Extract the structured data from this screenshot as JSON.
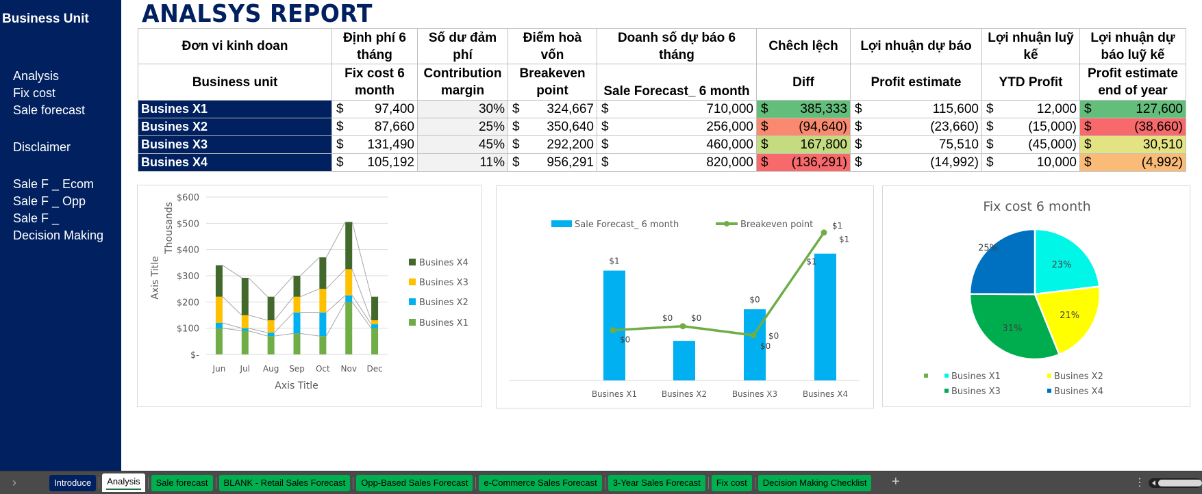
{
  "sidebar": {
    "title": "Business Unit",
    "links": [
      {
        "label": "Analysis"
      },
      {
        "label": "Fix cost"
      },
      {
        "label": "Sale forecast"
      },
      {
        "label": "Disclaimer"
      },
      {
        "label": "Sale F _ Ecom"
      },
      {
        "label": "Sale F _ Opp"
      },
      {
        "label": "Sale F _"
      },
      {
        "label": "Decision Making"
      }
    ]
  },
  "report": {
    "title": "ANALSYS REPORT",
    "headers_vn": [
      "Đơn vi kinh doan",
      "Định phí 6 tháng",
      "Số dư đảm phí",
      "Điểm hoà vốn",
      "Doanh số dự báo 6 tháng",
      "Chêch lệch",
      "Lợi nhuận dự báo",
      "Lợi nhuận luỹ kế",
      "Lợi nhuận dự báo luỹ kế"
    ],
    "headers_en": [
      "Business unit",
      "Fix cost 6 month",
      "Contribution margin",
      "Breakeven point",
      "Sale Forecast_ 6 month",
      "Diff",
      "Profit estimate",
      "YTD Profit",
      "Profit estimate end of year"
    ],
    "currency_symbol": "$",
    "rows": [
      {
        "unit": "Busines X1",
        "fix_cost": "97,400",
        "margin": "30%",
        "breakeven": "324,667",
        "sale_forecast": "710,000",
        "diff": "385,333",
        "profit_estimate": "115,600",
        "ytd_profit": "12,000",
        "profit_eoy": "127,600",
        "diff_color": "#63be7b",
        "eoy_color": "#63be7b"
      },
      {
        "unit": "Busines X2",
        "fix_cost": "87,660",
        "margin": "25%",
        "breakeven": "350,640",
        "sale_forecast": "256,000",
        "diff": "(94,640)",
        "profit_estimate": "(23,660)",
        "ytd_profit": "(15,000)",
        "profit_eoy": "(38,660)",
        "diff_color": "#fa8a6f",
        "eoy_color": "#f8696b"
      },
      {
        "unit": "Busines X3",
        "fix_cost": "131,490",
        "margin": "45%",
        "breakeven": "292,200",
        "sale_forecast": "460,000",
        "diff": "167,800",
        "profit_estimate": "75,510",
        "ytd_profit": "(45,000)",
        "profit_eoy": "30,510",
        "diff_color": "#c4dc7f",
        "eoy_color": "#e3e383"
      },
      {
        "unit": "Busines X4",
        "fix_cost": "105,192",
        "margin": "11%",
        "breakeven": "956,291",
        "sale_forecast": "820,000",
        "diff": "(136,291)",
        "profit_estimate": "(14,992)",
        "ytd_profit": "10,000",
        "profit_eoy": "(4,992)",
        "diff_color": "#f8696b",
        "eoy_color": "#fbbb78"
      }
    ]
  },
  "chart_data": [
    {
      "type": "bar",
      "stacked": true,
      "title": "",
      "xlabel": "Axis Title",
      "ylabel": "Axis Title",
      "units_label": "Thousands",
      "categories": [
        "Jun",
        "Jul",
        "Aug",
        "Sep",
        "Oct",
        "Nov",
        "Dec"
      ],
      "ylim": [
        0,
        600
      ],
      "yticks": [
        0,
        100,
        200,
        300,
        400,
        500,
        600
      ],
      "ytick_labels": [
        "$-",
        "$100",
        "$200",
        "$300",
        "$400",
        "$500",
        "$600"
      ],
      "grid": true,
      "series_lines": true,
      "legend_position": "right",
      "series": [
        {
          "name": "Busines X1",
          "color": "#70ad47",
          "values": [
            100,
            90,
            70,
            80,
            70,
            200,
            100
          ]
        },
        {
          "name": "Busines X2",
          "color": "#00b0f0",
          "values": [
            20,
            10,
            13,
            80,
            90,
            25,
            15
          ]
        },
        {
          "name": "Busines X3",
          "color": "#ffc000",
          "values": [
            100,
            50,
            47,
            60,
            90,
            100,
            15
          ]
        },
        {
          "name": "Busines X4",
          "color": "#43682b",
          "values": [
            120,
            142,
            90,
            80,
            120,
            180,
            90
          ]
        }
      ]
    },
    {
      "type": "bar",
      "title": "",
      "categories": [
        "Busines X1",
        "Busines X2",
        "Busines X3",
        "Busines X4"
      ],
      "legend_position": "top",
      "series": [
        {
          "name": "Sale Forecast_ 6 month",
          "kind": "bar",
          "color": "#00b0f0",
          "values": [
            710000,
            256000,
            460000,
            820000
          ],
          "labels": [
            "$1",
            "",
            "$0",
            "$1"
          ]
        },
        {
          "name": "Breakeven point",
          "kind": "line",
          "color": "#70ad47",
          "values": [
            324667,
            350640,
            292200,
            956291
          ],
          "labels": [
            "$0",
            "$0",
            "$0",
            "$1"
          ]
        }
      ],
      "extra_labels": [
        "$0",
        "$0",
        "$1"
      ],
      "ylim": [
        0,
        1000000
      ]
    },
    {
      "type": "pie",
      "title": "Fix cost 6 month",
      "legend_position": "bottom",
      "categories": [
        "Busines X1",
        "Busines X2",
        "Busines X3",
        "Busines X4"
      ],
      "values": [
        97400,
        87660,
        131490,
        105192
      ],
      "labels": [
        "23%",
        "21%",
        "31%",
        "25%"
      ],
      "colors": [
        "#00f7e8",
        "#ffff00",
        "#00ad4e",
        "#0070c0"
      ],
      "legend_extra_marker_color": "#70ad47"
    }
  ],
  "tabs": {
    "nav_arrow": "›",
    "items": [
      {
        "label": "Introduce",
        "style": "navy"
      },
      {
        "label": "Analysis",
        "style": "active"
      },
      {
        "label": "Sale forecast",
        "style": "green"
      },
      {
        "label": "BLANK - Retail Sales Forecast",
        "style": "green"
      },
      {
        "label": "Opp-Based Sales Forecast",
        "style": "green"
      },
      {
        "label": "e-Commerce Sales Forecast",
        "style": "green"
      },
      {
        "label": "3-Year Sales Forecast",
        "style": "green"
      },
      {
        "label": "Fix cost",
        "style": "green"
      },
      {
        "label": "Decision Making Checklist",
        "style": "green"
      }
    ],
    "add_label": "+",
    "more_label": "⋮"
  }
}
